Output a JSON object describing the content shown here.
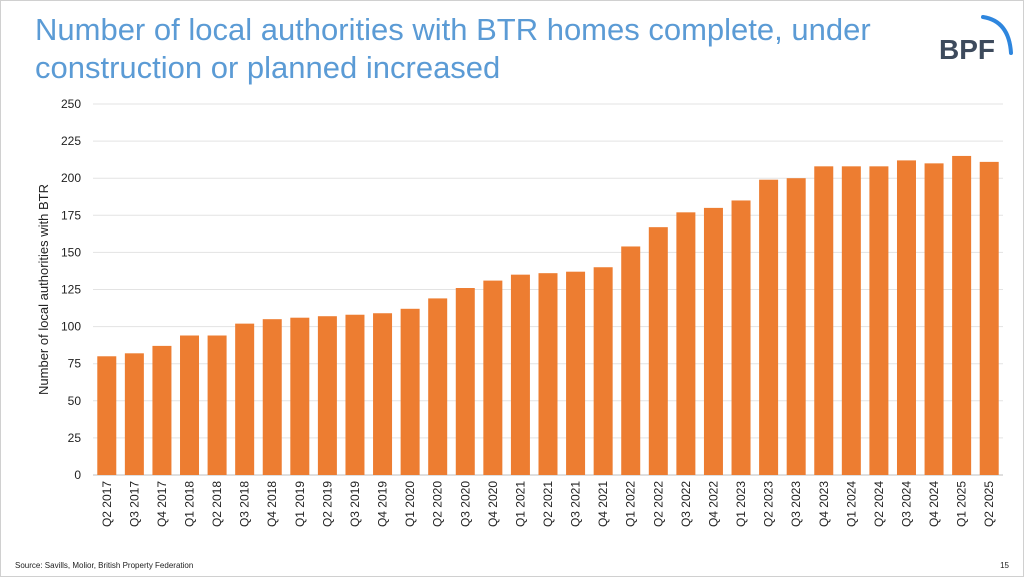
{
  "title": "Number of local authorities with BTR homes complete, under construction or planned increased",
  "logo": "BPF",
  "source": "Source: Savills, Molior, British Property Federation",
  "page_number": "15",
  "colors": {
    "bar": "#ed7d31",
    "title": "#5b9bd5",
    "logo_text": "#3d4a5c",
    "logo_arc": "#2e86de"
  },
  "chart_data": {
    "type": "bar",
    "title": "",
    "xlabel": "",
    "ylabel": "Number of local authorities with BTR",
    "ylim": [
      0,
      250
    ],
    "yticks": [
      0,
      25,
      50,
      75,
      100,
      125,
      150,
      175,
      200,
      225,
      250
    ],
    "grid": true,
    "categories": [
      "Q2 2017",
      "Q3 2017",
      "Q4 2017",
      "Q1 2018",
      "Q2 2018",
      "Q3 2018",
      "Q4 2018",
      "Q1 2019",
      "Q2 2019",
      "Q3 2019",
      "Q4 2019",
      "Q1 2020",
      "Q2 2020",
      "Q3 2020",
      "Q4 2020",
      "Q1 2021",
      "Q2 2021",
      "Q3 2021",
      "Q4 2021",
      "Q1 2022",
      "Q2 2022",
      "Q3 2022",
      "Q4 2022",
      "Q1 2023",
      "Q2 2023",
      "Q3 2023",
      "Q4 2023",
      "Q1 2024",
      "Q2 2024",
      "Q3 2024",
      "Q4 2024",
      "Q1 2025",
      "Q2 2025"
    ],
    "values": [
      80,
      82,
      87,
      94,
      94,
      102,
      105,
      106,
      107,
      108,
      109,
      112,
      119,
      126,
      131,
      135,
      136,
      137,
      140,
      154,
      167,
      177,
      180,
      185,
      199,
      200,
      208,
      208,
      208,
      212,
      210,
      215,
      211
    ]
  }
}
